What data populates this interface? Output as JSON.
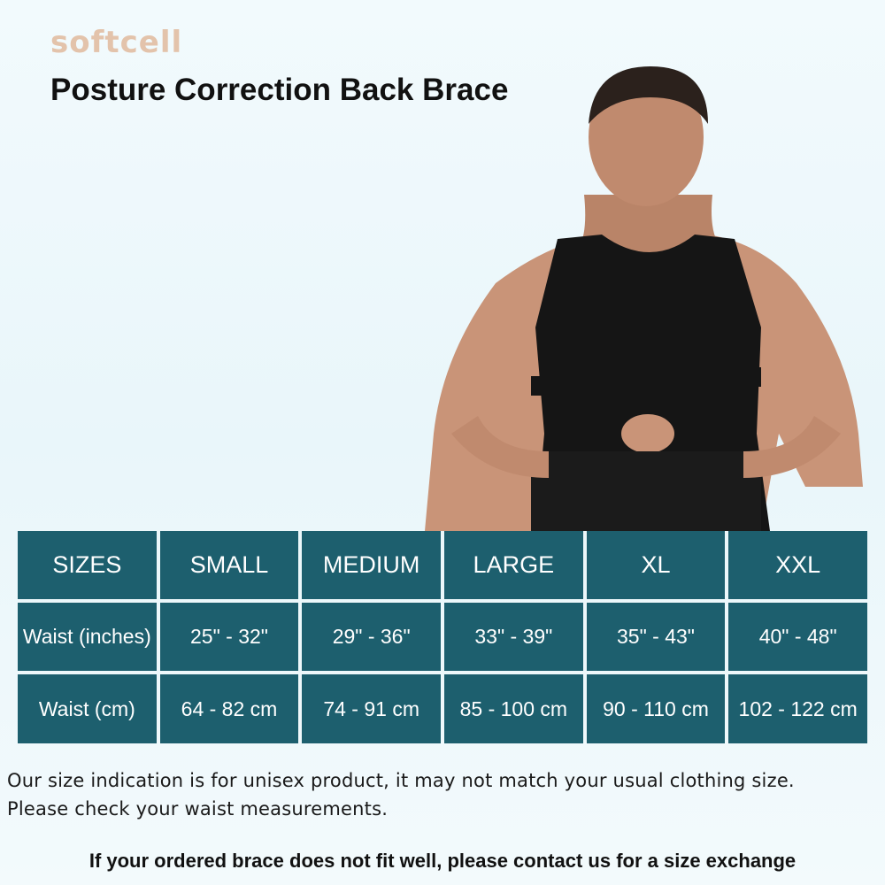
{
  "brand": "softcell",
  "title": "Posture Correction Back Brace",
  "size_table": {
    "headers": [
      "SIZES",
      "SMALL",
      "MEDIUM",
      "LARGE",
      "XL",
      "XXL"
    ],
    "rows": [
      [
        "Waist (inches)",
        "25\" - 32\"",
        "29\" - 36\"",
        "33\" - 39\"",
        "35\" - 43\"",
        "40\" - 48\""
      ],
      [
        "Waist (cm)",
        "64 - 82 cm",
        "74 - 91 cm",
        "85 - 100 cm",
        "90 - 110 cm",
        "102 - 122 cm"
      ]
    ]
  },
  "note_lines": [
    "Our size indication is for unisex product, it may not match your usual clothing size.",
    "Please check your waist measurements."
  ],
  "footer": "If your ordered brace does not fit well, please contact us for a size exchange",
  "colors": {
    "table": "#1d5f6e",
    "brand": "#e3c3ab"
  }
}
